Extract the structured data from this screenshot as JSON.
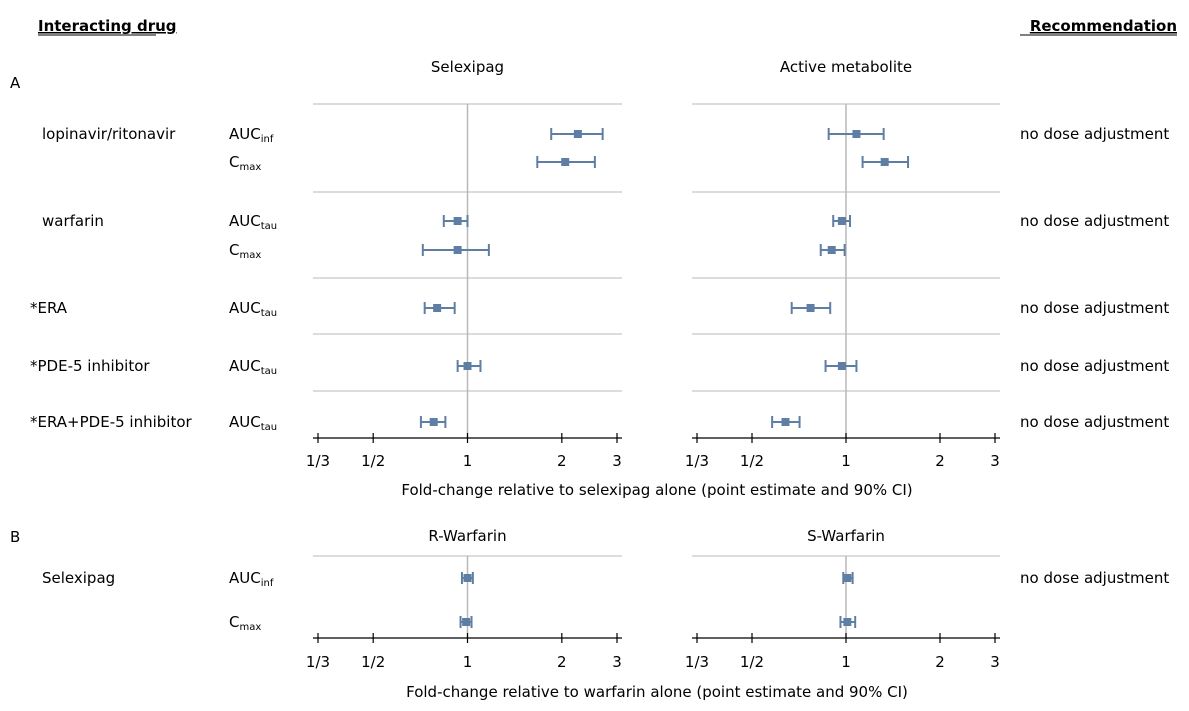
{
  "headers": {
    "left": "Interacting drug",
    "right": "Recommendation"
  },
  "chart_data": {
    "type": "forest",
    "x_scale": "log",
    "x_ticks": [
      {
        "value": 0.3333,
        "label": "1/3"
      },
      {
        "value": 0.5,
        "label": "1/2"
      },
      {
        "value": 1,
        "label": "1"
      },
      {
        "value": 2,
        "label": "2"
      },
      {
        "value": 3,
        "label": "3"
      }
    ],
    "reference_line": 1,
    "colors": {
      "marker": "#5f7ea3",
      "grid": "#b8b8b8"
    },
    "panels": [
      {
        "label": "A",
        "xlabel": "Fold-change relative to selexipag alone (point estimate and 90% CI)",
        "columns": [
          "Selexipag",
          "Active metabolite"
        ],
        "groups": [
          {
            "drug": "lopinavir/ritonavir",
            "recommendation": "no dose adjustment",
            "rows": [
              {
                "param": "AUC",
                "sub": "inf",
                "values": [
                  [
                    2.25,
                    1.85,
                    2.7
                  ],
                  [
                    1.08,
                    0.88,
                    1.32
                  ]
                ]
              },
              {
                "param": "C",
                "sub": "max",
                "values": [
                  [
                    2.05,
                    1.67,
                    2.55
                  ],
                  [
                    1.33,
                    1.13,
                    1.58
                  ]
                ]
              }
            ]
          },
          {
            "drug": "warfarin",
            "recommendation": "no dose adjustment",
            "rows": [
              {
                "param": "AUC",
                "sub": "tau",
                "values": [
                  [
                    0.93,
                    0.84,
                    1.0
                  ],
                  [
                    0.97,
                    0.91,
                    1.03
                  ]
                ]
              },
              {
                "param": "C",
                "sub": "max",
                "values": [
                  [
                    0.93,
                    0.72,
                    1.17
                  ],
                  [
                    0.9,
                    0.83,
                    0.99
                  ]
                ]
              }
            ]
          },
          {
            "drug": "*ERA",
            "recommendation": "no dose adjustment",
            "rows": [
              {
                "param": "AUC",
                "sub": "tau",
                "values": [
                  [
                    0.8,
                    0.73,
                    0.91
                  ],
                  [
                    0.77,
                    0.67,
                    0.89
                  ]
                ]
              }
            ]
          },
          {
            "drug": "*PDE-5 inhibitor",
            "recommendation": "no dose adjustment",
            "rows": [
              {
                "param": "AUC",
                "sub": "tau",
                "values": [
                  [
                    1.0,
                    0.93,
                    1.1
                  ],
                  [
                    0.97,
                    0.86,
                    1.08
                  ]
                ]
              }
            ]
          },
          {
            "drug": "*ERA+PDE-5 inhibitor",
            "recommendation": "no dose adjustment",
            "rows": [
              {
                "param": "AUC",
                "sub": "tau",
                "values": [
                  [
                    0.78,
                    0.71,
                    0.85
                  ],
                  [
                    0.64,
                    0.58,
                    0.71
                  ]
                ]
              }
            ]
          }
        ]
      },
      {
        "label": "B",
        "xlabel": "Fold-change relative to warfarin alone (point estimate and 90% CI)",
        "columns": [
          "R-Warfarin",
          "S-Warfarin"
        ],
        "groups": [
          {
            "drug": "Selexipag",
            "recommendation": "no dose adjustment",
            "rows": [
              {
                "param": "AUC",
                "sub": "inf",
                "values": [
                  [
                    1.0,
                    0.96,
                    1.04
                  ],
                  [
                    1.01,
                    0.98,
                    1.05
                  ]
                ]
              },
              {
                "param": "C",
                "sub": "max",
                "values": [
                  [
                    0.99,
                    0.95,
                    1.03
                  ],
                  [
                    1.01,
                    0.96,
                    1.07
                  ]
                ]
              }
            ]
          }
        ]
      }
    ]
  }
}
